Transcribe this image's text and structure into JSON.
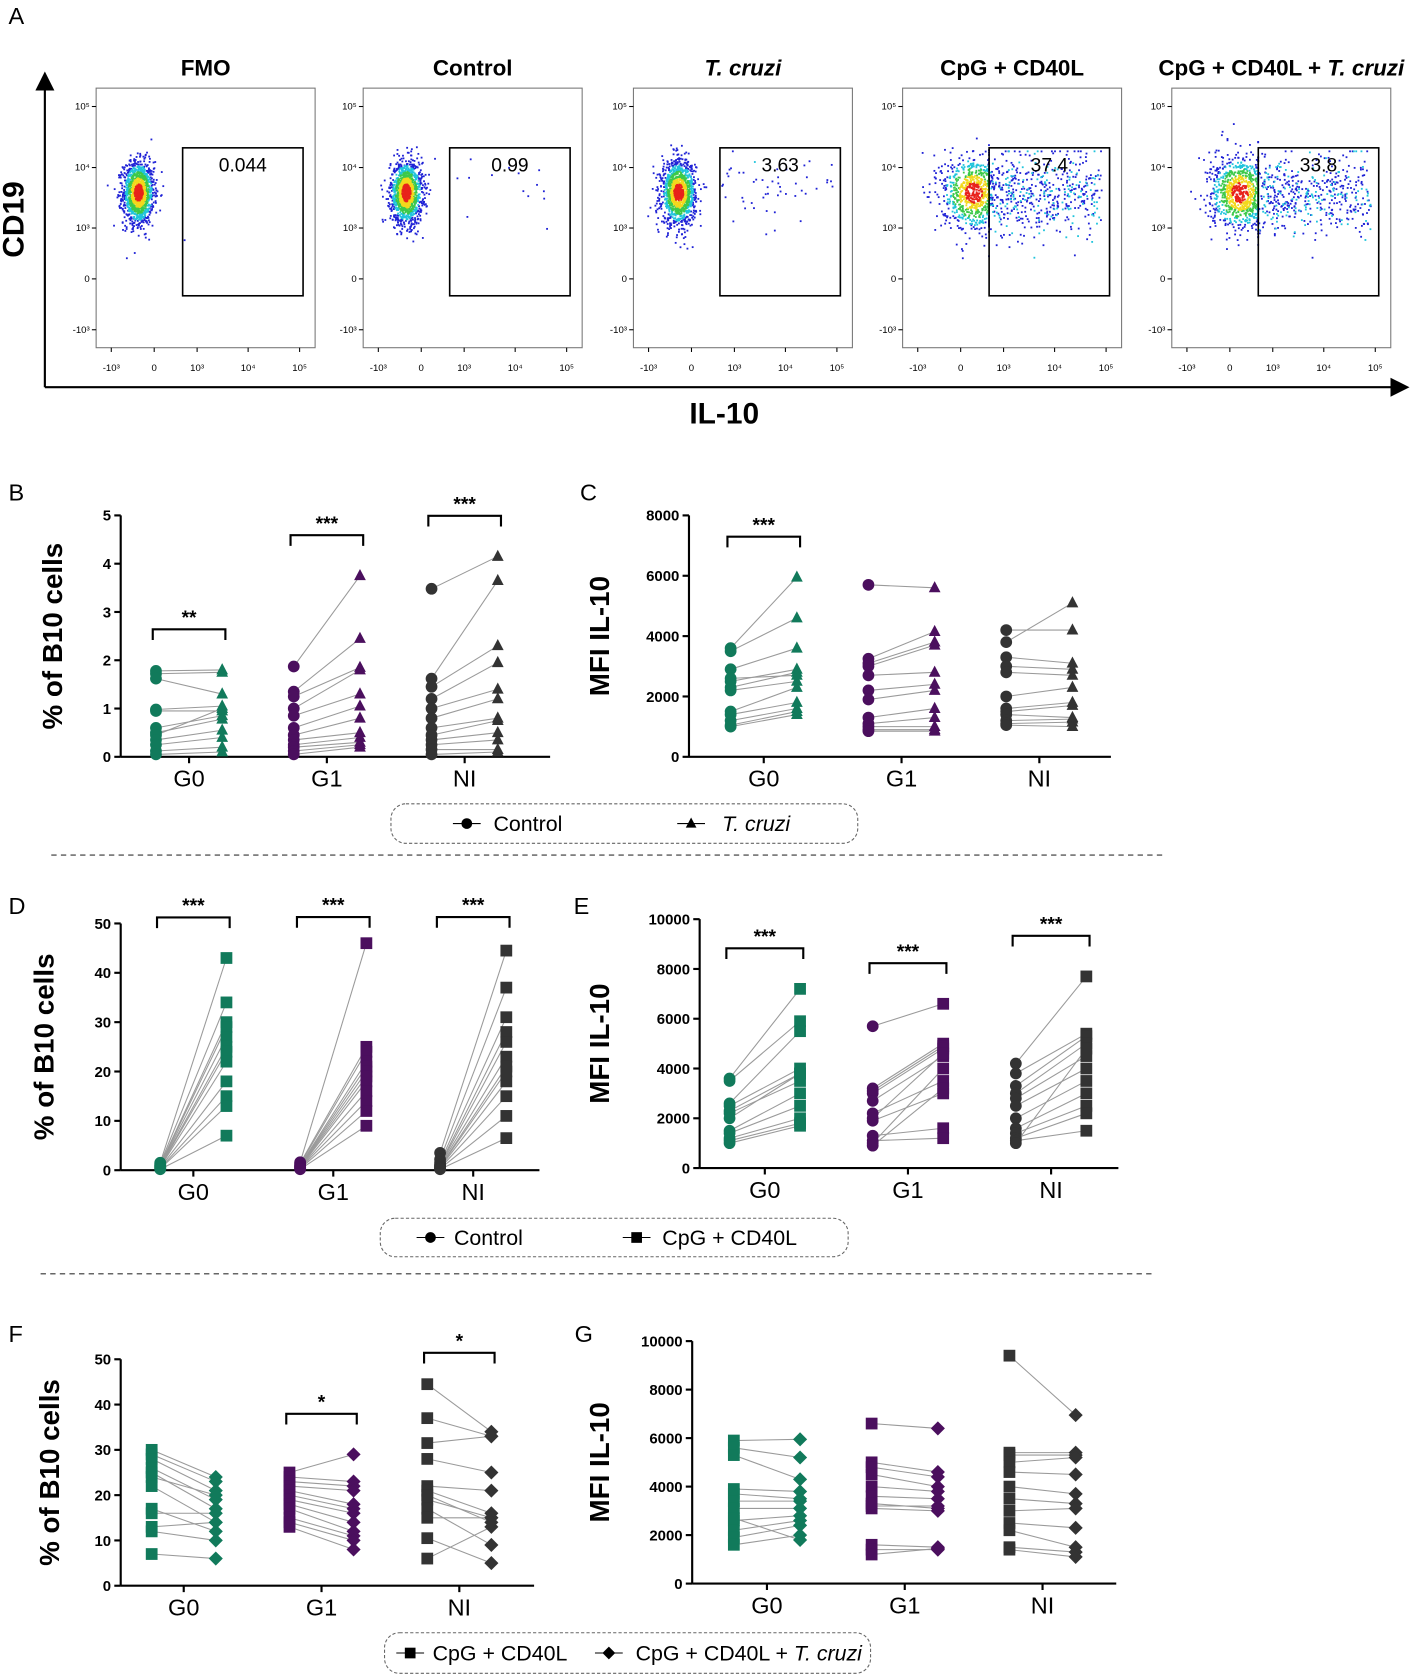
{
  "flow_axes": {
    "panel": "A",
    "xlabel": "IL-10",
    "ylabel": "CD19",
    "lim": [
      -2000,
      200000
    ],
    "ticks": [
      {
        "value": -1000,
        "label": "-10³"
      },
      0,
      {
        "value": 1000,
        "label": "10³"
      },
      {
        "value": 10000,
        "label": "10⁴"
      },
      {
        "value": 100000,
        "label": "10⁵"
      }
    ]
  },
  "legends": [
    {
      "entries": [
        {
          "marker": "circle",
          "parts": [
            {
              "text": "Control"
            }
          ]
        },
        {
          "marker": "triangle",
          "parts": [
            {
              "text": "T. cruzi",
              "italic": true
            }
          ]
        }
      ]
    },
    {
      "entries": [
        {
          "marker": "circle",
          "parts": [
            {
              "text": "Control"
            }
          ]
        },
        {
          "marker": "square",
          "parts": [
            {
              "text": "CpG + CD40L"
            }
          ]
        }
      ]
    },
    {
      "entries": [
        {
          "marker": "square",
          "parts": [
            {
              "text": "CpG + CD40L"
            }
          ]
        },
        {
          "marker": "diamond",
          "parts": [
            {
              "text": "CpG + CD40L + "
            },
            {
              "text": "T. cruzi",
              "italic": true
            }
          ]
        }
      ]
    }
  ],
  "chart_data": [
    {
      "type": "flow",
      "title": [
        {
          "text": "FMO"
        }
      ],
      "gate_value": 0.044
    },
    {
      "type": "flow",
      "title": [
        {
          "text": "Control"
        }
      ],
      "gate_value": 0.99
    },
    {
      "type": "flow",
      "title": [
        {
          "text": "T. cruzi",
          "italic": true
        }
      ],
      "gate_value": 3.63
    },
    {
      "type": "flow",
      "title": [
        {
          "text": "CpG + CD40L"
        }
      ],
      "gate_value": 37.4
    },
    {
      "type": "flow",
      "title": [
        {
          "text": "CpG + CD40L + "
        },
        {
          "text": "T. cruzi",
          "italic": true
        }
      ],
      "gate_value": 33.8
    },
    {
      "type": "paired",
      "panel": "B",
      "ylabel": "% of B10 cells",
      "categories": [
        "G0",
        "G1",
        "NI"
      ],
      "colors": [
        "#117a5b",
        "#4b0f5e",
        "#333333"
      ],
      "ylim": [
        0,
        5
      ],
      "yticks": [
        0,
        1,
        2,
        3,
        4,
        5
      ],
      "series": [
        {
          "marker": "circle",
          "values": [
            [
              1.78,
              1.72,
              1.62,
              0.98,
              0.95,
              0.6,
              0.5,
              0.45,
              0.35,
              0.25,
              0.12,
              0.05
            ],
            [
              1.87,
              1.35,
              1.25,
              1.0,
              0.85,
              0.6,
              0.45,
              0.35,
              0.25,
              0.2,
              0.12,
              0.05
            ],
            [
              3.48,
              1.62,
              1.45,
              1.2,
              1.0,
              0.8,
              0.6,
              0.45,
              0.35,
              0.25,
              0.15,
              0.05
            ]
          ]
        },
        {
          "marker": "triangle",
          "values": [
            [
              1.8,
              1.75,
              1.3,
              1.05,
              0.95,
              0.85,
              0.78,
              1.0,
              0.55,
              0.4,
              0.2,
              0.1
            ],
            [
              3.75,
              2.45,
              1.85,
              1.8,
              1.3,
              1.05,
              0.8,
              0.5,
              0.4,
              0.3,
              0.25,
              0.2
            ],
            [
              4.15,
              3.65,
              2.3,
              1.95,
              1.4,
              1.2,
              0.8,
              0.75,
              0.5,
              0.35,
              0.15,
              0.1
            ]
          ]
        }
      ],
      "significance": [
        {
          "category": 0,
          "label": "**"
        },
        {
          "category": 1,
          "label": "***"
        },
        {
          "category": 2,
          "label": "***"
        }
      ]
    },
    {
      "type": "paired",
      "panel": "C",
      "ylabel": "MFI IL-10",
      "categories": [
        "G0",
        "G1",
        "NI"
      ],
      "colors": [
        "#117a5b",
        "#4b0f5e",
        "#333333"
      ],
      "ylim": [
        0,
        8000
      ],
      "yticks": [
        0,
        2000,
        4000,
        6000,
        8000
      ],
      "series": [
        {
          "marker": "circle",
          "values": [
            [
              3600,
              3500,
              2900,
              2500,
              2300,
              2200,
              1500,
              1400,
              1200,
              1050,
              1000,
              2600
            ],
            [
              5700,
              3250,
              3100,
              3000,
              2700,
              2200,
              1900,
              1300,
              1100,
              1000,
              900,
              850
            ],
            [
              4200,
              3800,
              3300,
              3000,
              2800,
              2000,
              1600,
              1500,
              1400,
              1200,
              1100,
              1050
            ]
          ]
        },
        {
          "marker": "triangle",
          "values": [
            [
              5950,
              4600,
              3600,
              2900,
              2800,
              2500,
              2300,
              1800,
              1600,
              1500,
              1400,
              2700
            ],
            [
              5600,
              4150,
              3800,
              3700,
              2800,
              2400,
              2200,
              1600,
              1300,
              1000,
              900,
              850
            ],
            [
              4200,
              5100,
              3100,
              2900,
              2700,
              2300,
              1800,
              1700,
              1300,
              1250,
              1150,
              1000
            ]
          ]
        }
      ],
      "significance": [
        {
          "category": 0,
          "label": "***"
        }
      ]
    },
    {
      "type": "paired",
      "panel": "D",
      "ylabel": "% of B10 cells",
      "categories": [
        "G0",
        "G1",
        "NI"
      ],
      "colors": [
        "#117a5b",
        "#4b0f5e",
        "#333333"
      ],
      "ylim": [
        0,
        50
      ],
      "yticks": [
        0,
        10,
        20,
        30,
        40,
        50
      ],
      "series": [
        {
          "marker": "circle",
          "values": [
            [
              1.5,
              1.3,
              1.1,
              1.0,
              0.9,
              0.8,
              0.7,
              0.6,
              0.5,
              0.4,
              0.3,
              0.2
            ],
            [
              1.6,
              1.4,
              1.2,
              1.0,
              0.9,
              0.8,
              0.7,
              0.6,
              0.5,
              0.4,
              0.3,
              0.2
            ],
            [
              3.5,
              2.2,
              1.6,
              1.2,
              1.0,
              0.9,
              0.7,
              0.6,
              0.5,
              0.4,
              0.3,
              0.2
            ]
          ]
        },
        {
          "marker": "square",
          "values": [
            [
              43,
              34,
              30,
              29,
              27,
              25,
              24,
              22,
              18,
              15,
              13,
              7
            ],
            [
              46,
              25,
              24,
              22,
              21,
              20,
              19,
              18,
              16,
              14,
              12,
              9
            ],
            [
              44.5,
              37,
              31,
              28,
              26,
              23,
              21,
              20,
              18,
              15,
              11,
              6.5
            ]
          ]
        }
      ],
      "significance": [
        {
          "category": 0,
          "label": "***"
        },
        {
          "category": 1,
          "label": "***"
        },
        {
          "category": 2,
          "label": "***"
        }
      ]
    },
    {
      "type": "paired",
      "panel": "E",
      "ylabel": "MFI IL-10",
      "categories": [
        "G0",
        "G1",
        "NI"
      ],
      "colors": [
        "#117a5b",
        "#4b0f5e",
        "#333333"
      ],
      "ylim": [
        0,
        10000
      ],
      "yticks": [
        0,
        2000,
        4000,
        6000,
        8000,
        10000
      ],
      "series": [
        {
          "marker": "circle",
          "values": [
            [
              3600,
              3500,
              2600,
              2500,
              2300,
              2200,
              1500,
              1400,
              1200,
              1100,
              1000,
              2000
            ],
            [
              5700,
              3200,
              3100,
              3000,
              2700,
              2200,
              1900,
              1300,
              1100,
              1000,
              900,
              2000
            ],
            [
              4200,
              3800,
              3300,
              3000,
              2800,
              2500,
              2000,
              1600,
              1400,
              1200,
              1100,
              1000
            ]
          ]
        },
        {
          "marker": "square",
          "values": [
            [
              7200,
              5900,
              5500,
              4000,
              3800,
              3500,
              3000,
              2500,
              2000,
              1800,
              1700,
              3800
            ],
            [
              6600,
              5000,
              4900,
              4800,
              4500,
              3500,
              3000,
              1600,
              1200,
              4000,
              3200,
              4600
            ],
            [
              7700,
              5400,
              5300,
              5000,
              4500,
              4000,
              3500,
              3000,
              2500,
              2200,
              1500,
              4800
            ]
          ]
        }
      ],
      "significance": [
        {
          "category": 0,
          "label": "***"
        },
        {
          "category": 1,
          "label": "***"
        },
        {
          "category": 2,
          "label": "***"
        }
      ]
    },
    {
      "type": "paired",
      "panel": "F",
      "ylabel": "% of B10 cells",
      "categories": [
        "G0",
        "G1",
        "NI"
      ],
      "colors": [
        "#117a5b",
        "#4b0f5e",
        "#333333"
      ],
      "ylim": [
        0,
        50
      ],
      "yticks": [
        0,
        10,
        20,
        30,
        40,
        50
      ],
      "series": [
        {
          "marker": "square",
          "values": [
            [
              30,
              29,
              28,
              26,
              25,
              24,
              22,
              17,
              16,
              13,
              12,
              7
            ],
            [
              25,
              24,
              23,
              22,
              21,
              20,
              19,
              18,
              17,
              15,
              14,
              13
            ],
            [
              44.5,
              37,
              31.5,
              28,
              22,
              21,
              19,
              17,
              15,
              10.5,
              6,
              20
            ]
          ]
        },
        {
          "marker": "diamond",
          "values": [
            [
              24,
              23,
              21,
              19,
              17,
              20,
              14,
              12,
              16,
              14,
              10,
              6
            ],
            [
              29,
              23,
              22,
              21,
              18,
              17,
              16,
              14,
              12,
              11,
              10,
              8
            ],
            [
              34,
              33,
              33,
              25,
              21,
              16,
              15,
              9,
              15,
              5,
              13,
              14
            ]
          ]
        }
      ],
      "significance": [
        {
          "category": 1,
          "label": "*"
        },
        {
          "category": 2,
          "label": "*"
        }
      ]
    },
    {
      "type": "paired",
      "panel": "G",
      "ylabel": "MFI IL-10",
      "categories": [
        "G0",
        "G1",
        "NI"
      ],
      "colors": [
        "#117a5b",
        "#4b0f5e",
        "#333333"
      ],
      "ylim": [
        0,
        10000
      ],
      "yticks": [
        0,
        2000,
        4000,
        6000,
        8000,
        10000
      ],
      "series": [
        {
          "marker": "square",
          "values": [
            [
              5900,
              5600,
              5300,
              3900,
              3700,
              3400,
              3100,
              2600,
              2200,
              1900,
              1600,
              2700
            ],
            [
              6600,
              5000,
              4800,
              4500,
              4000,
              3600,
              3200,
              3100,
              1600,
              1400,
              1200,
              3300
            ],
            [
              9400,
              5400,
              5300,
              5000,
              4600,
              4000,
              3500,
              3000,
              2500,
              2200,
              1500,
              1400
            ]
          ]
        },
        {
          "marker": "diamond",
          "values": [
            [
              5950,
              5200,
              4300,
              3800,
              3500,
              3400,
              3100,
              2800,
              2600,
              2400,
              2000,
              1800
            ],
            [
              6400,
              4600,
              4400,
              4000,
              3800,
              3500,
              3200,
              3000,
              1500,
              1400,
              1450,
              3100
            ],
            [
              6950,
              5400,
              5300,
              5200,
              4500,
              3700,
              3300,
              3100,
              2300,
              1500,
              1300,
              1100
            ]
          ]
        }
      ],
      "significance": []
    }
  ]
}
